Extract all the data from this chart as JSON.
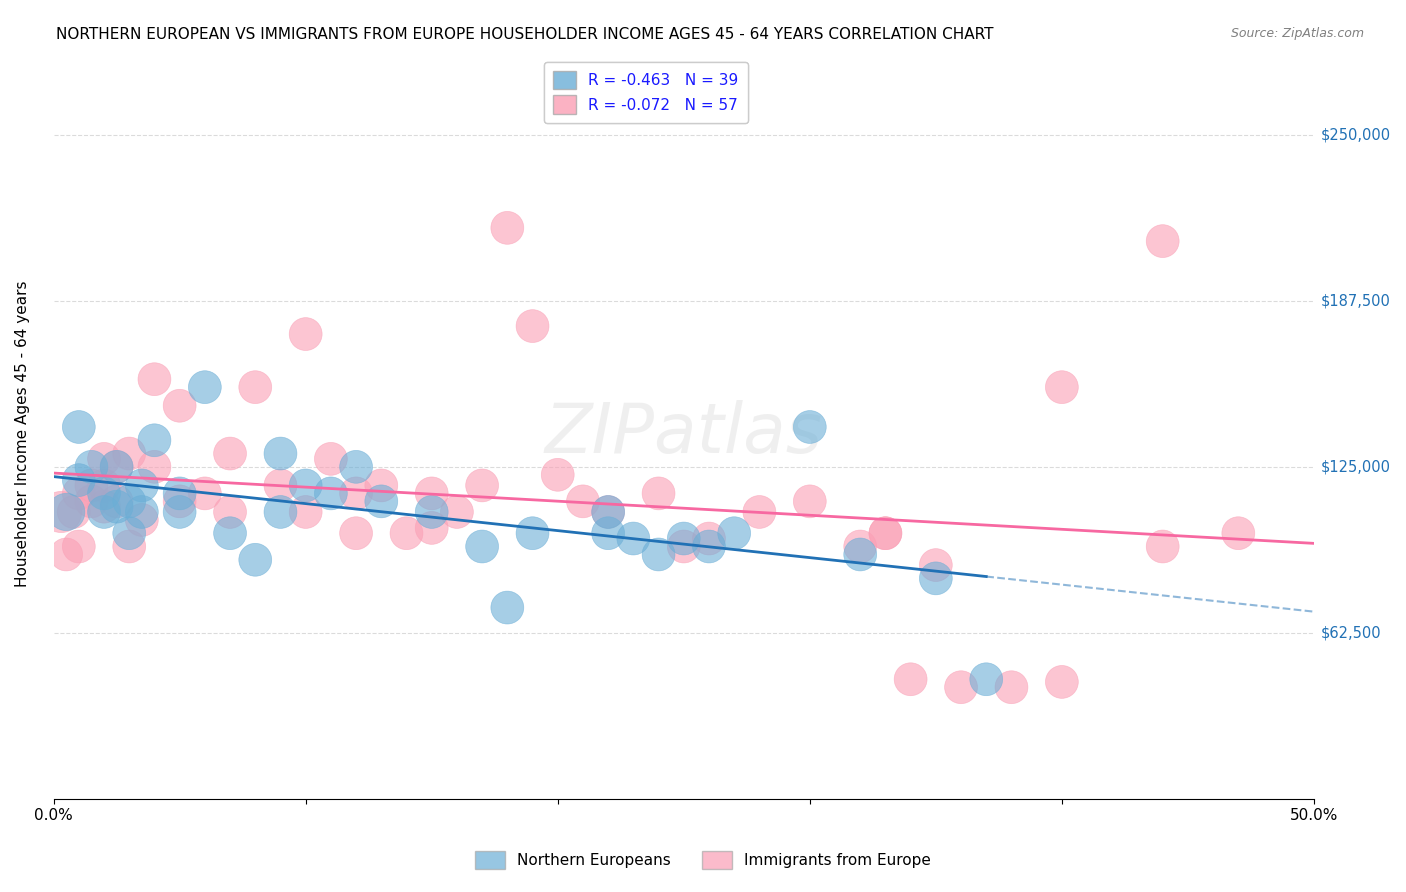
{
  "title": "NORTHERN EUROPEAN VS IMMIGRANTS FROM EUROPE HOUSEHOLDER INCOME AGES 45 - 64 YEARS CORRELATION CHART",
  "source": "Source: ZipAtlas.com",
  "ylabel": "Householder Income Ages 45 - 64 years",
  "xlim": [
    0.0,
    0.5
  ],
  "ylim": [
    0,
    275000
  ],
  "yticks": [
    62500,
    125000,
    187500,
    250000
  ],
  "ytick_labels": [
    "$62,500",
    "$125,000",
    "$187,500",
    "$250,000"
  ],
  "xticks": [
    0.0,
    0.1,
    0.2,
    0.3,
    0.4,
    0.5
  ],
  "xtick_labels": [
    "0.0%",
    "",
    "",
    "",
    "",
    "50.0%"
  ],
  "legend_entry1": "R = -0.463   N = 39",
  "legend_entry2": "R = -0.072   N = 57",
  "legend_label1": "Northern Europeans",
  "legend_label2": "Immigrants from Europe",
  "blue_color": "#6baed6",
  "pink_color": "#fa9fb5",
  "blue_line_color": "#2171b5",
  "pink_line_color": "#f768a1",
  "background_color": "#ffffff",
  "grid_color": "#cccccc",
  "watermark": "ZIPatlas",
  "blue_x": [
    0.005,
    0.01,
    0.01,
    0.015,
    0.02,
    0.02,
    0.025,
    0.025,
    0.03,
    0.03,
    0.035,
    0.035,
    0.04,
    0.05,
    0.05,
    0.06,
    0.07,
    0.08,
    0.09,
    0.09,
    0.1,
    0.11,
    0.12,
    0.13,
    0.15,
    0.17,
    0.18,
    0.19,
    0.22,
    0.22,
    0.23,
    0.24,
    0.25,
    0.26,
    0.27,
    0.3,
    0.32,
    0.35,
    0.37
  ],
  "blue_y": [
    108000,
    140000,
    120000,
    125000,
    115000,
    108000,
    110000,
    125000,
    112000,
    100000,
    108000,
    118000,
    135000,
    108000,
    115000,
    155000,
    100000,
    90000,
    130000,
    108000,
    118000,
    115000,
    125000,
    112000,
    108000,
    95000,
    72000,
    100000,
    100000,
    108000,
    98000,
    92000,
    98000,
    95000,
    100000,
    140000,
    92000,
    83000,
    45000
  ],
  "pink_x": [
    0.003,
    0.005,
    0.008,
    0.01,
    0.01,
    0.015,
    0.015,
    0.02,
    0.02,
    0.02,
    0.025,
    0.025,
    0.03,
    0.03,
    0.035,
    0.04,
    0.04,
    0.05,
    0.05,
    0.06,
    0.07,
    0.07,
    0.08,
    0.09,
    0.1,
    0.1,
    0.11,
    0.12,
    0.12,
    0.13,
    0.14,
    0.15,
    0.15,
    0.16,
    0.17,
    0.18,
    0.19,
    0.2,
    0.21,
    0.22,
    0.24,
    0.25,
    0.26,
    0.28,
    0.3,
    0.32,
    0.33,
    0.33,
    0.34,
    0.35,
    0.36,
    0.38,
    0.4,
    0.4,
    0.44,
    0.44,
    0.47
  ],
  "pink_y": [
    108000,
    92000,
    108000,
    95000,
    115000,
    112000,
    118000,
    110000,
    118000,
    128000,
    112000,
    125000,
    130000,
    95000,
    105000,
    158000,
    125000,
    148000,
    112000,
    115000,
    130000,
    108000,
    155000,
    118000,
    175000,
    108000,
    128000,
    100000,
    115000,
    118000,
    100000,
    102000,
    115000,
    108000,
    118000,
    215000,
    178000,
    122000,
    112000,
    108000,
    115000,
    95000,
    98000,
    108000,
    112000,
    95000,
    100000,
    100000,
    45000,
    88000,
    42000,
    42000,
    155000,
    44000,
    95000,
    210000,
    100000
  ],
  "blue_sizes": [
    18,
    14,
    14,
    14,
    14,
    14,
    14,
    14,
    14,
    14,
    14,
    14,
    14,
    14,
    14,
    14,
    14,
    14,
    14,
    14,
    14,
    14,
    14,
    14,
    14,
    14,
    14,
    14,
    14,
    14,
    14,
    14,
    14,
    14,
    14,
    14,
    14,
    14,
    14
  ],
  "pink_sizes": [
    22,
    14,
    14,
    14,
    14,
    14,
    14,
    14,
    14,
    14,
    14,
    14,
    14,
    14,
    14,
    14,
    14,
    14,
    14,
    14,
    14,
    14,
    14,
    14,
    14,
    14,
    14,
    14,
    14,
    14,
    14,
    14,
    14,
    14,
    14,
    14,
    14,
    14,
    14,
    14,
    14,
    14,
    14,
    14,
    14,
    14,
    14,
    14,
    14,
    14,
    14,
    14,
    14,
    14,
    14,
    14,
    14
  ]
}
